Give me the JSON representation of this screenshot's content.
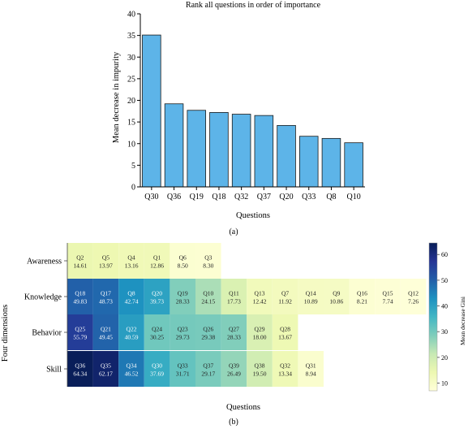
{
  "chart_data": [
    {
      "type": "bar",
      "panel_label": "(a)",
      "title": "Rank all questions in order of importance",
      "xlabel": "Questions",
      "ylabel": "Mean decrease in impurity",
      "ylim": [
        0,
        40
      ],
      "yticks": [
        "0",
        "5",
        "10",
        "15",
        "20",
        "25",
        "30",
        "35",
        "40"
      ],
      "categories": [
        "Q30",
        "Q36",
        "Q19",
        "Q18",
        "Q32",
        "Q37",
        "Q20",
        "Q33",
        "Q8",
        "Q10"
      ],
      "values": [
        35.1,
        19.2,
        17.7,
        17.2,
        16.8,
        16.5,
        14.2,
        11.7,
        11.2,
        10.2
      ],
      "color": "#5db4e8",
      "grid": false
    },
    {
      "type": "heatmap",
      "panel_label": "(b)",
      "xlabel": "Questions",
      "ylabel": "Four dimensions",
      "colorbar_label": "Mean decrease Gini",
      "colorbar_ticks": [
        "10",
        "20",
        "30",
        "40",
        "50",
        "60"
      ],
      "color_range": [
        7,
        64.5
      ],
      "colors": [
        "#ffffd9",
        "#edf8b1",
        "#c7e9b4",
        "#7fcdbb",
        "#41b6c4",
        "#1d91c0",
        "#225ea8",
        "#253494",
        "#081d58"
      ],
      "rows": [
        {
          "name": "Awareness",
          "cells": [
            {
              "label": "Q2",
              "value": "14.61"
            },
            {
              "label": "Q5",
              "value": "13.97"
            },
            {
              "label": "Q4",
              "value": "13.16"
            },
            {
              "label": "Q1",
              "value": "12.86"
            },
            {
              "label": "Q6",
              "value": "8.50"
            },
            {
              "label": "Q3",
              "value": "8.30"
            }
          ]
        },
        {
          "name": "Knowledge",
          "cells": [
            {
              "label": "Q18",
              "value": "49.83"
            },
            {
              "label": "Q17",
              "value": "48.73"
            },
            {
              "label": "Q8",
              "value": "42.74"
            },
            {
              "label": "Q20",
              "value": "39.73"
            },
            {
              "label": "Q19",
              "value": "28.33"
            },
            {
              "label": "Q10",
              "value": "24.15"
            },
            {
              "label": "Q11",
              "value": "17.73"
            },
            {
              "label": "Q13",
              "value": "12.42"
            },
            {
              "label": "Q7",
              "value": "11.92"
            },
            {
              "label": "Q14",
              "value": "10.89"
            },
            {
              "label": "Q9",
              "value": "10.86"
            },
            {
              "label": "Q16",
              "value": "8.21"
            },
            {
              "label": "Q15",
              "value": "7.74"
            },
            {
              "label": "Q12",
              "value": "7.26"
            }
          ]
        },
        {
          "name": "Behavior",
          "cells": [
            {
              "label": "Q25",
              "value": "55.79"
            },
            {
              "label": "Q21",
              "value": "49.45"
            },
            {
              "label": "Q22",
              "value": "40.59"
            },
            {
              "label": "Q24",
              "value": "30.25"
            },
            {
              "label": "Q23",
              "value": "29.73"
            },
            {
              "label": "Q26",
              "value": "29.38"
            },
            {
              "label": "Q27",
              "value": "28.33"
            },
            {
              "label": "Q29",
              "value": "18.00"
            },
            {
              "label": "Q28",
              "value": "13.67"
            }
          ]
        },
        {
          "name": "Skill",
          "cells": [
            {
              "label": "Q36",
              "value": "64.34"
            },
            {
              "label": "Q35",
              "value": "62.17"
            },
            {
              "label": "Q34",
              "value": "46.52"
            },
            {
              "label": "Q30",
              "value": "37.69"
            },
            {
              "label": "Q33",
              "value": "31.71"
            },
            {
              "label": "Q37",
              "value": "29.17"
            },
            {
              "label": "Q39",
              "value": "26.49"
            },
            {
              "label": "Q38",
              "value": "19.50"
            },
            {
              "label": "Q32",
              "value": "13.34"
            },
            {
              "label": "Q31",
              "value": "8.94"
            }
          ]
        }
      ]
    }
  ]
}
